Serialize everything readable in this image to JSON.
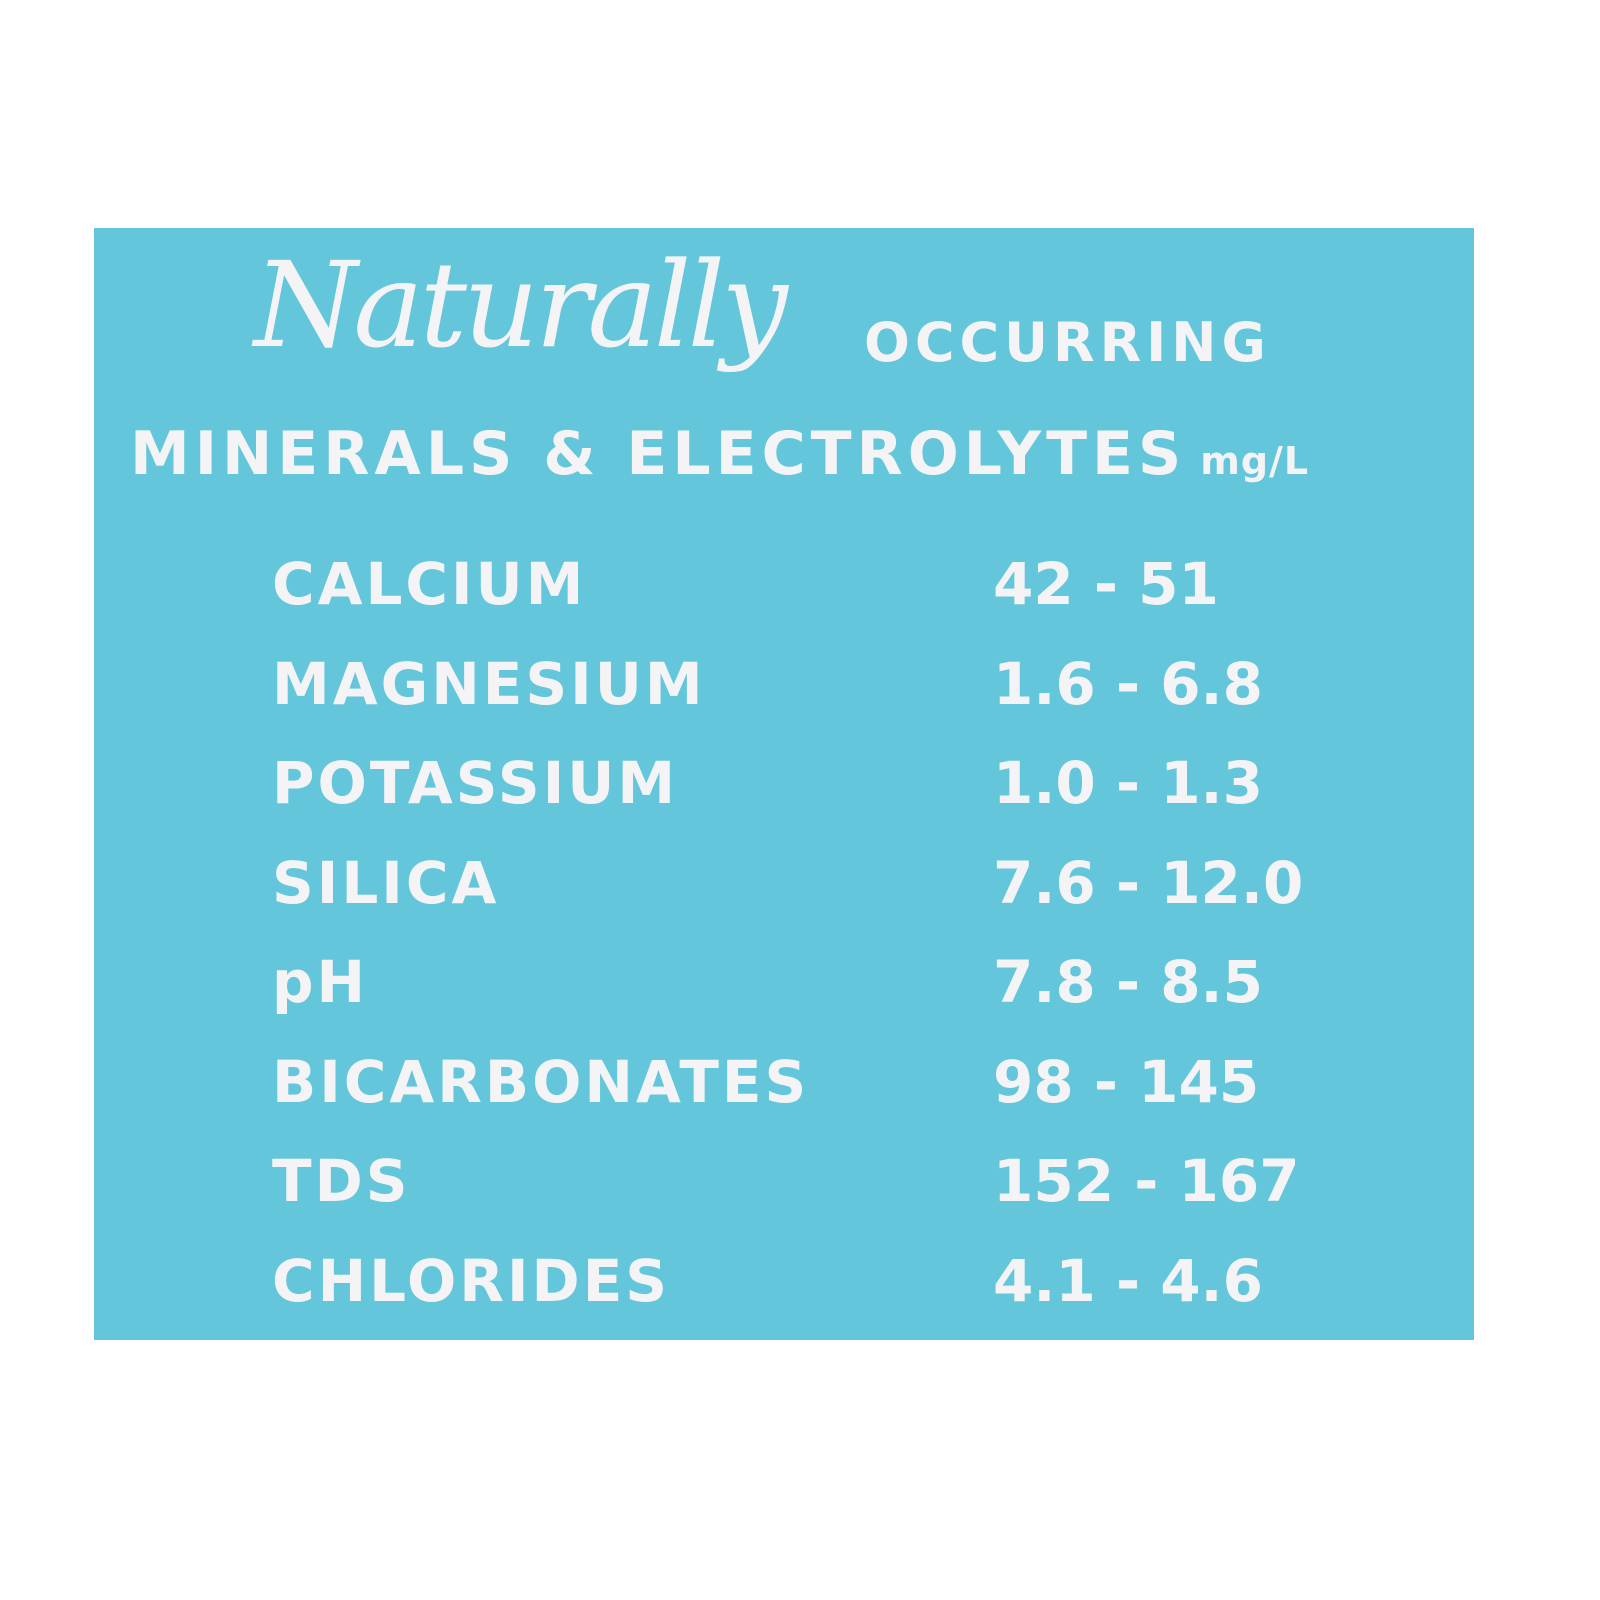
{
  "background_color": "#63c6da",
  "text_color": "#f4f4f6",
  "heading": {
    "script_word": "Naturally",
    "line1_rest": "OCCURRING",
    "line2": "MINERALS & ELECTROLYTES",
    "unit": "mg/L"
  },
  "table": [
    {
      "label": "CALCIUM",
      "value": "42 - 51"
    },
    {
      "label": "MAGNESIUM",
      "value": "1.6 - 6.8"
    },
    {
      "label": "POTASSIUM",
      "value": "1.0 - 1.3"
    },
    {
      "label": "SILICA",
      "value": "7.6 - 12.0"
    },
    {
      "label": "pH",
      "value": "7.8 - 8.5"
    },
    {
      "label": "BICARBONATES",
      "value": "98 - 145"
    },
    {
      "label": "TDS",
      "value": "152 - 167"
    },
    {
      "label": "CHLORIDES",
      "value": "4.1 - 4.6"
    }
  ]
}
